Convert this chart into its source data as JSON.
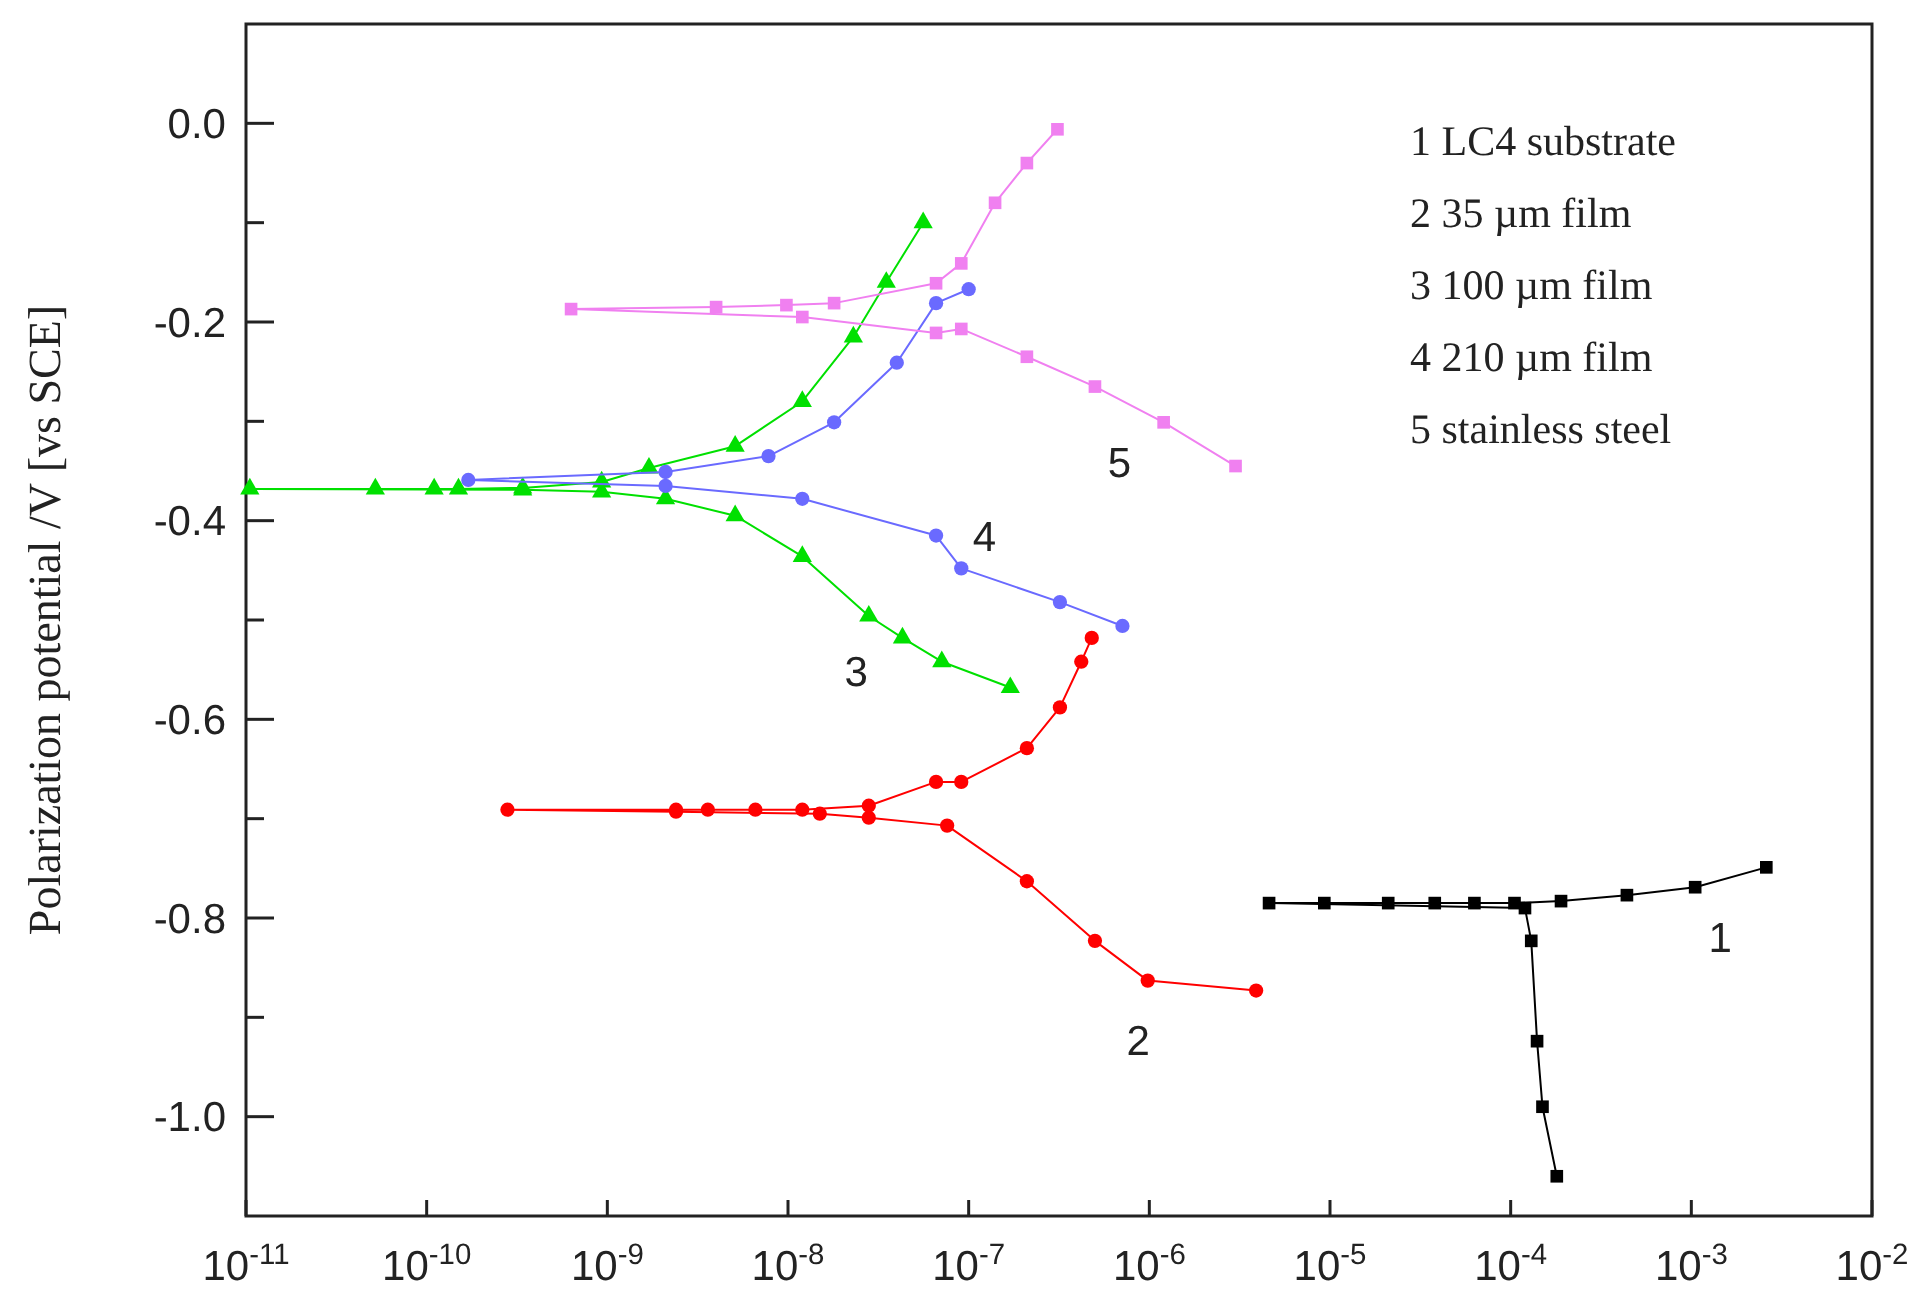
{
  "chart_data": {
    "type": "line",
    "ylabel": "Polarization potential /V [vs SCE]",
    "log": "x",
    "xlim": [
      1e-11,
      0.01
    ],
    "ylim": [
      -1.1,
      0.1
    ],
    "xticks": [
      {
        "value": 1e-11,
        "label": "10$^{-11}$"
      },
      {
        "value": 1e-10,
        "label": "10$^{-10}$"
      },
      {
        "value": 1e-09,
        "label": "10$^{-9}$"
      },
      {
        "value": 1e-08,
        "label": "10$^{-8}$"
      },
      {
        "value": 1e-07,
        "label": "10$^{-7}$"
      },
      {
        "value": 1e-06,
        "label": "10$^{-6}$"
      },
      {
        "value": 1e-05,
        "label": "10$^{-5}$"
      },
      {
        "value": 0.0001,
        "label": "10$^{-4}$"
      },
      {
        "value": 0.001,
        "label": "10$^{-3}$"
      },
      {
        "value": 0.01,
        "label": "10$^{-2}$"
      }
    ],
    "yticks": [
      {
        "value": 0,
        "label": "0.0"
      },
      {
        "value": -0.1,
        "label": null
      },
      {
        "value": -0.2,
        "label": "-0.2"
      },
      {
        "value": -0.3,
        "label": null
      },
      {
        "value": -0.4,
        "label": "-0.4"
      },
      {
        "value": -0.5,
        "label": null
      },
      {
        "value": -0.6,
        "label": "-0.6"
      },
      {
        "value": -0.7,
        "label": null
      },
      {
        "value": -0.8,
        "label": "-0.8"
      },
      {
        "value": -0.9,
        "label": null
      },
      {
        "value": -1.0,
        "label": "-1.0"
      }
    ],
    "grid": false,
    "line_style": "solid",
    "series": [
      {
        "name": "1",
        "color": "#000000",
        "marker": "square",
        "x": [
          0.0026,
          0.00105,
          0.00044,
          0.00019,
          0.000105,
          6.3e-05,
          3.8e-05,
          2.1e-05,
          9.3e-06,
          4.6e-06,
          0.00012,
          0.00013,
          0.00014,
          0.00015,
          0.00018
        ],
        "values": [
          -0.749,
          -0.769,
          -0.777,
          -0.783,
          -0.785,
          -0.785,
          -0.785,
          -0.785,
          -0.785,
          -0.785,
          -0.79,
          -0.823,
          -0.924,
          -0.99,
          -1.06
        ]
      },
      {
        "name": "2",
        "color": "#ff0000",
        "marker": "circle",
        "x": [
          4.8e-07,
          4.2e-07,
          3.2e-07,
          2.1e-07,
          9.1e-08,
          6.6e-08,
          2.8e-08,
          1.2e-08,
          6.6e-09,
          3.6e-09,
          2.4e-09,
          2.8e-10,
          2.4e-09,
          1.5e-08,
          2.8e-08,
          7.6e-08,
          2.1e-07,
          5e-07,
          9.8e-07,
          3.9e-06
        ],
        "values": [
          -0.518,
          -0.542,
          -0.588,
          -0.629,
          -0.663,
          -0.663,
          -0.687,
          -0.691,
          -0.691,
          -0.691,
          -0.691,
          -0.691,
          -0.693,
          -0.695,
          -0.699,
          -0.707,
          -0.763,
          -0.823,
          -0.863,
          -0.873
        ]
      },
      {
        "name": "3",
        "color": "#00e000",
        "marker": "triangle",
        "x": [
          5.6e-08,
          3.5e-08,
          2.3e-08,
          1.2e-08,
          5.1e-09,
          1.7e-09,
          9.3e-10,
          3.4e-10,
          1.5e-10,
          1.1e-10,
          5.2e-11,
          1.05e-11,
          3.4e-10,
          9.3e-10,
          2.1e-09,
          5.1e-09,
          1.2e-08,
          2.8e-08,
          4.3e-08,
          7.1e-08,
          1.7e-07
        ],
        "values": [
          -0.1,
          -0.16,
          -0.215,
          -0.28,
          -0.325,
          -0.347,
          -0.361,
          -0.367,
          -0.368,
          -0.368,
          -0.368,
          -0.368,
          -0.369,
          -0.371,
          -0.378,
          -0.395,
          -0.436,
          -0.496,
          -0.518,
          -0.542,
          -0.568
        ]
      },
      {
        "name": "4",
        "color": "#6a6aff",
        "marker": "circle",
        "x": [
          1e-07,
          6.6e-08,
          4e-08,
          1.8e-08,
          7.8e-09,
          2.1e-09,
          1.7e-10,
          2.1e-09,
          1.2e-08,
          6.6e-08,
          9.1e-08,
          3.2e-07,
          7.1e-07
        ],
        "values": [
          -0.167,
          -0.181,
          -0.241,
          -0.301,
          -0.335,
          -0.351,
          -0.359,
          -0.365,
          -0.378,
          -0.415,
          -0.448,
          -0.482,
          -0.506
        ]
      },
      {
        "name": "5",
        "color": "#f080f0",
        "marker": "square",
        "x": [
          3.1e-07,
          2.1e-07,
          1.4e-07,
          9.1e-08,
          6.6e-08,
          1.8e-08,
          9.8e-09,
          4e-09,
          6.3e-10,
          1.2e-08,
          6.6e-08,
          9.1e-08,
          2.1e-07,
          5e-07,
          1.2e-06,
          3e-06
        ],
        "values": [
          -0.006,
          -0.04,
          -0.08,
          -0.141,
          -0.161,
          -0.181,
          -0.183,
          -0.185,
          -0.187,
          -0.195,
          -0.211,
          -0.207,
          -0.235,
          -0.265,
          -0.301,
          -0.345
        ]
      }
    ],
    "annotations": [
      "1 LC4 substrate",
      "2 35 µm film",
      "3 100 µm film",
      "4 210 µm film",
      "5 stainless steel"
    ]
  }
}
